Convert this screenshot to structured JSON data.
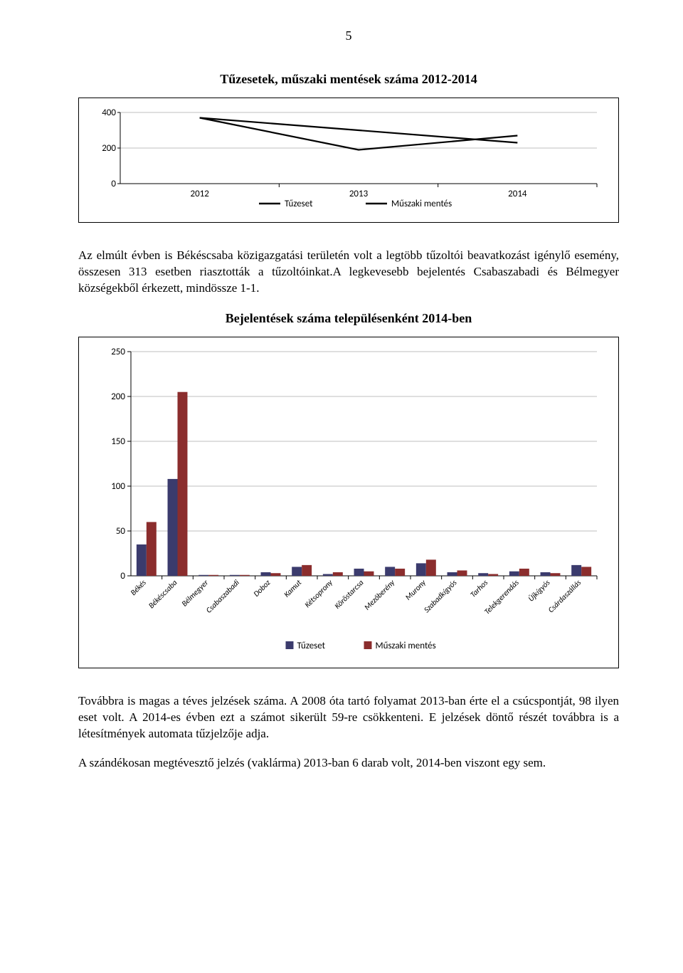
{
  "page_number": "5",
  "chart1": {
    "title": "Tűzesetek, műszaki mentések száma 2012-2014",
    "type": "line",
    "x_labels": [
      "2012",
      "2013",
      "2014"
    ],
    "y_ticks": [
      0,
      200,
      400
    ],
    "series": [
      {
        "name": "Tűzeset",
        "color": "#000000",
        "values": [
          370,
          190,
          270
        ]
      },
      {
        "name": "Műszaki mentés",
        "color": "#000000",
        "values": [
          370,
          300,
          230
        ]
      }
    ],
    "grid_color": "#808080",
    "plot_border": "#000000",
    "y_max": 400
  },
  "para1": "Az elmúlt évben is Békéscsaba közigazgatási területén volt a legtöbb tűzoltói beavatkozást igénylő esemény, összesen 313 esetben riasztották a tűzoltóinkat.A legkevesebb bejelentés Csabaszabadi és Bélmegyer községekből érkezett, mindössze 1-1.",
  "chart2": {
    "title": "Bejelentések száma településenként 2014-ben",
    "type": "bar",
    "y_ticks": [
      0,
      50,
      100,
      150,
      200,
      250
    ],
    "y_max": 250,
    "grid_color": "#808080",
    "colors": {
      "tuzeset": "#3b3b6d",
      "muszaki": "#8b2d2d"
    },
    "legend": [
      "Tűzeset",
      "Műszaki mentés"
    ],
    "categories": [
      {
        "name": "Békés",
        "tuzeset": 35,
        "muszaki": 60
      },
      {
        "name": "Békéscsaba",
        "tuzeset": 108,
        "muszaki": 205
      },
      {
        "name": "Bélmegyer",
        "tuzeset": 1,
        "muszaki": 1
      },
      {
        "name": "Csabaszabadi",
        "tuzeset": 1,
        "muszaki": 1
      },
      {
        "name": "Doboz",
        "tuzeset": 4,
        "muszaki": 3
      },
      {
        "name": "Kamut",
        "tuzeset": 10,
        "muszaki": 12
      },
      {
        "name": "Kétsoprony",
        "tuzeset": 2,
        "muszaki": 4
      },
      {
        "name": "Köröstarcsa",
        "tuzeset": 8,
        "muszaki": 5
      },
      {
        "name": "Mezőberény",
        "tuzeset": 10,
        "muszaki": 8
      },
      {
        "name": "Murony",
        "tuzeset": 14,
        "muszaki": 18
      },
      {
        "name": "Szabadkígyós",
        "tuzeset": 4,
        "muszaki": 6
      },
      {
        "name": "Tarhos",
        "tuzeset": 3,
        "muszaki": 2
      },
      {
        "name": "Telekgerendás",
        "tuzeset": 5,
        "muszaki": 8
      },
      {
        "name": "Újkígyós",
        "tuzeset": 4,
        "muszaki": 3
      },
      {
        "name": "Csárdaszállás",
        "tuzeset": 12,
        "muszaki": 10
      }
    ]
  },
  "para2": "Továbbra is magas a téves jelzések száma. A 2008 óta tartó folyamat 2013-ban érte el a csúcspontját, 98 ilyen eset volt. A 2014-es évben ezt a számot sikerült 59-re csökkenteni. E jelzések döntő részét továbbra is a létesítmények automata tűzjelzője adja.",
  "para3": "A szándékosan megtévesztő jelzés (vaklárma) 2013-ban 6 darab volt, 2014-ben viszont egy sem."
}
